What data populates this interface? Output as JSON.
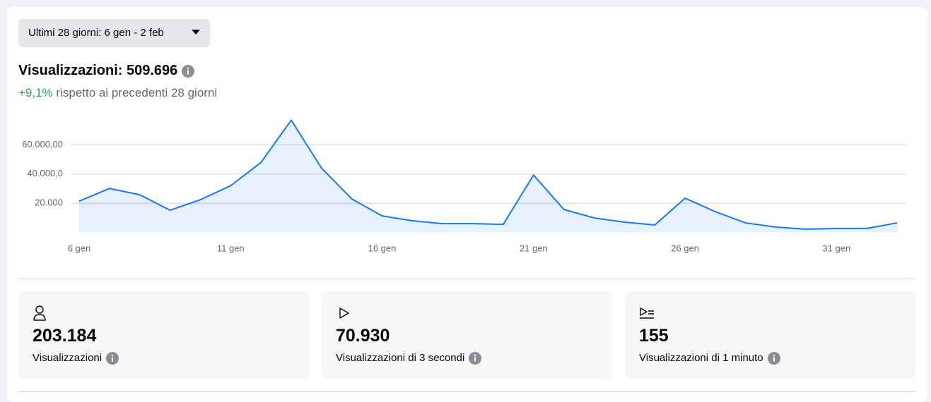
{
  "header": {
    "range": "Ultimi 28 giorni: 6 gen - 2 feb"
  },
  "summary": {
    "title": "Visualizzazioni: 509.696",
    "change": "+9,1%",
    "change_text": "rispetto ai precedenti 28 giorni"
  },
  "chart_data": {
    "type": "line",
    "categories": [
      "6 gen",
      null,
      null,
      null,
      null,
      "11 gen",
      null,
      null,
      null,
      null,
      "16 gen",
      null,
      null,
      null,
      null,
      "21 gen",
      null,
      null,
      null,
      null,
      "26 gen",
      null,
      null,
      null,
      null,
      "31 gen",
      null,
      null
    ],
    "series": [
      {
        "color": "#1877f2",
        "values": [
          21400,
          30100,
          25800,
          15200,
          22400,
          32000,
          47900,
          76900,
          44100,
          22900,
          11300,
          8000,
          6000,
          6000,
          5500,
          39300,
          15700,
          9900,
          7000,
          5100,
          23400,
          14200,
          6500,
          3600,
          2200,
          2700,
          2700,
          6500
        ]
      }
    ],
    "ylim": [
      0,
      80000
    ],
    "yticks": [
      {
        "value": 20000,
        "label": "20.000"
      },
      {
        "value": 40000,
        "label": "40.000,0"
      },
      {
        "value": 60000,
        "label": "60.000,00"
      }
    ],
    "grid": true,
    "area": true
  },
  "cards": [
    {
      "value": "203.184",
      "label": "Visualizzazioni"
    },
    {
      "value": "70.930",
      "label": "Visualizzazioni di 3 secondi"
    },
    {
      "value": "155",
      "label": "Visualizzazioni di 1 minuto"
    }
  ]
}
